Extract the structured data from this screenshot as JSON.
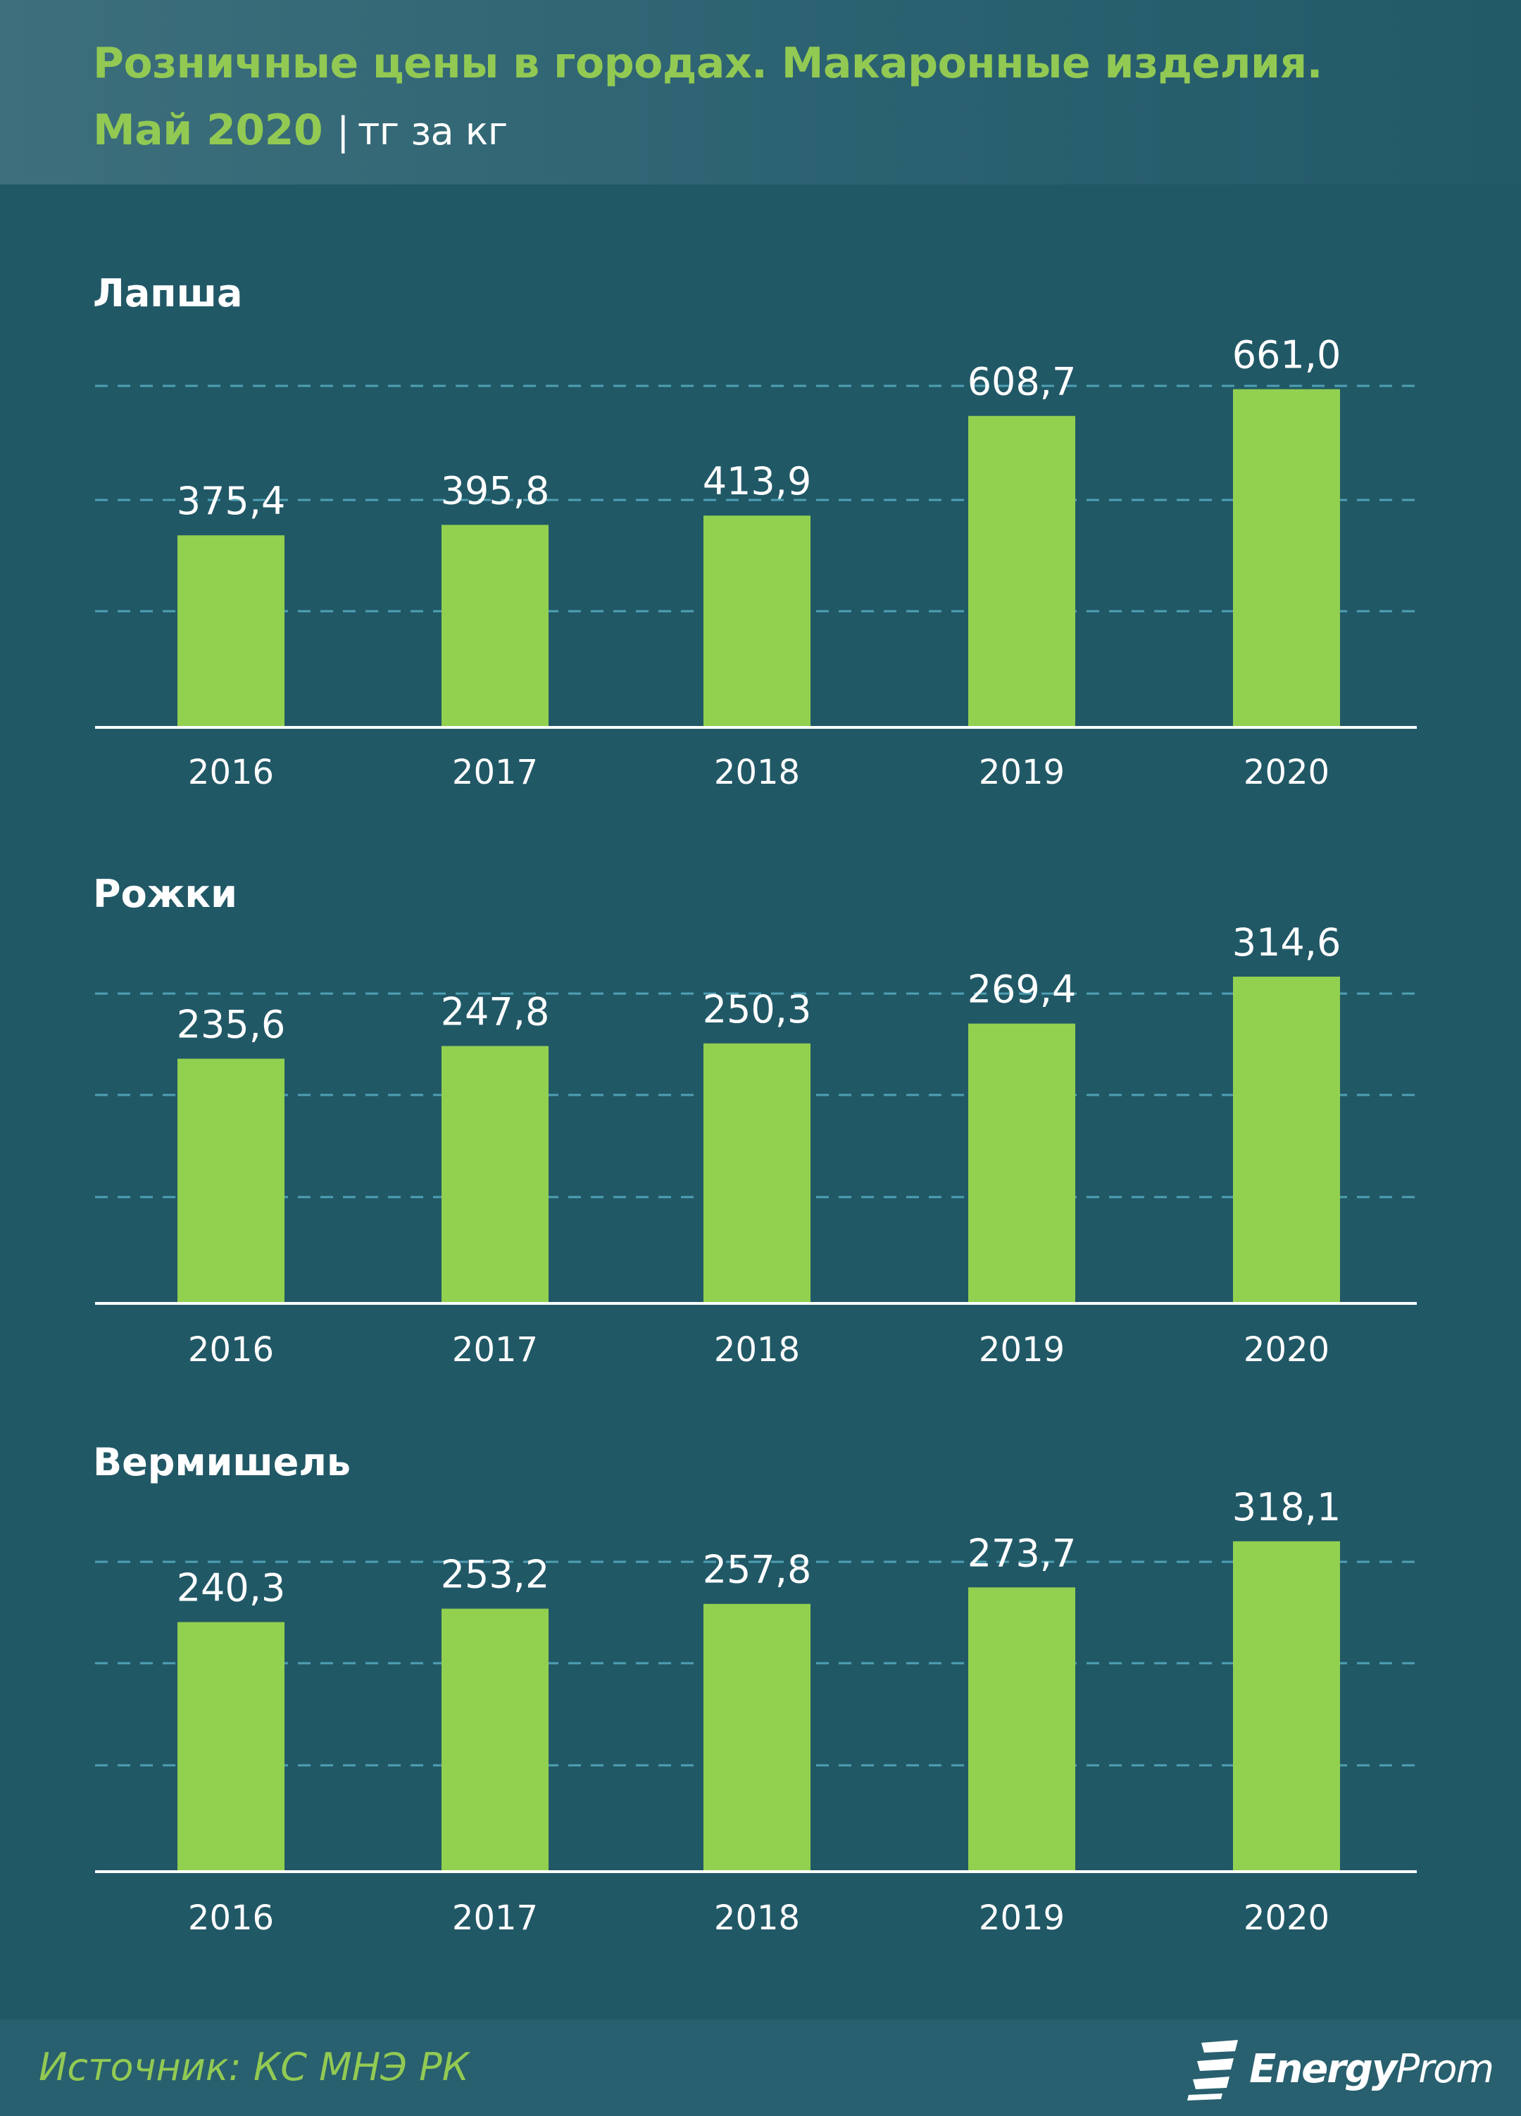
{
  "header": {
    "title_line1": "Розничные цены в городах. Макаронные изделия.",
    "title_line2": "Май 2020",
    "separator": "|",
    "unit": "тг за кг"
  },
  "colors": {
    "background": "#215866",
    "bar": "#92d050",
    "accent_text": "#92c953",
    "grid": "#4fa0b4",
    "axis": "#ffffff"
  },
  "chart_data": [
    {
      "type": "bar",
      "title": "Лапша",
      "categories": [
        "2016",
        "2017",
        "2018",
        "2019",
        "2020"
      ],
      "values": [
        375.4,
        395.8,
        413.9,
        608.7,
        661.0
      ],
      "labels": [
        "375,4",
        "395,8",
        "413,9",
        "608,7",
        "661,0"
      ],
      "ylim": [
        0,
        750
      ],
      "grid": true
    },
    {
      "type": "bar",
      "title": "Рожки",
      "categories": [
        "2016",
        "2017",
        "2018",
        "2019",
        "2020"
      ],
      "values": [
        235.6,
        247.8,
        250.3,
        269.4,
        314.6
      ],
      "labels": [
        "235,6",
        "247,8",
        "250,3",
        "269,4",
        "314,6"
      ],
      "ylim": [
        0,
        400
      ],
      "grid": true
    },
    {
      "type": "bar",
      "title": "Вермишель",
      "categories": [
        "2016",
        "2017",
        "2018",
        "2019",
        "2020"
      ],
      "values": [
        240.3,
        253.2,
        257.8,
        273.7,
        318.1
      ],
      "labels": [
        "240,3",
        "253,2",
        "257,8",
        "273,7",
        "318,1"
      ],
      "ylim": [
        0,
        400
      ],
      "grid": true
    }
  ],
  "footer": {
    "source": "Источник: КС МНЭ РК",
    "brand_part1": "Energy",
    "brand_part2": "Prom",
    "brand_icon": "energyprom-logo-icon"
  }
}
